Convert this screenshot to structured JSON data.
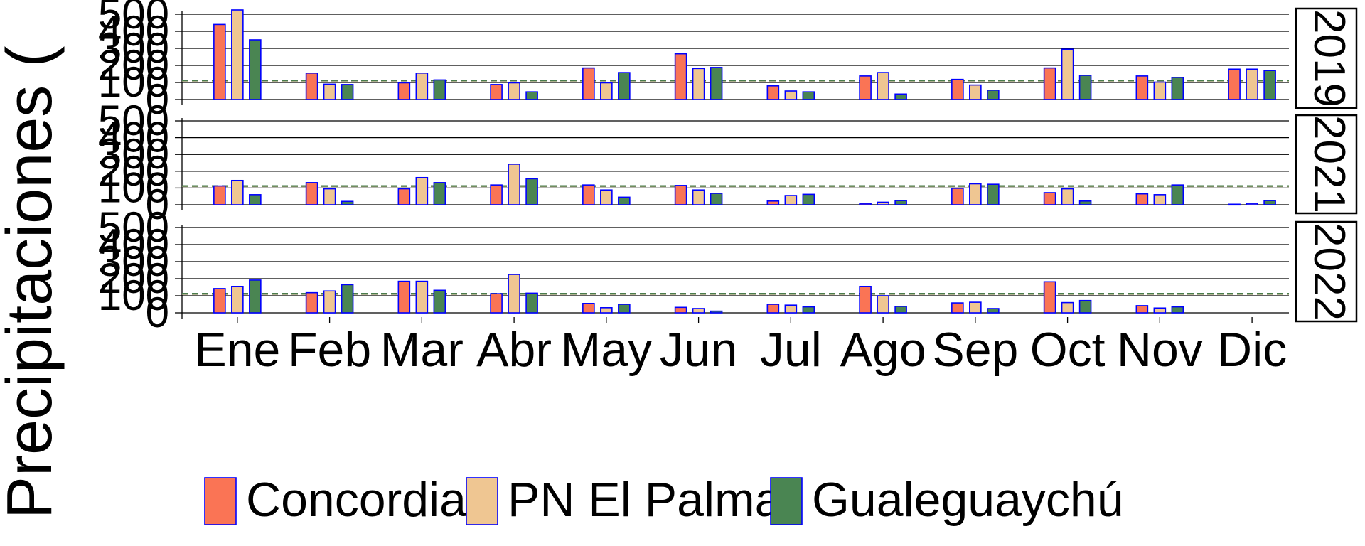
{
  "chart_data": {
    "type": "bar",
    "ylabel": "Precipitaciones (",
    "categories": [
      "Ene",
      "Feb",
      "Mar",
      "Abr",
      "May",
      "Jun",
      "Jul",
      "Ago",
      "Sep",
      "Oct",
      "Nov",
      "Dic"
    ],
    "y_ticks": [
      "0",
      "100",
      "200",
      "300",
      "400",
      "500"
    ],
    "ylim": [
      0,
      500
    ],
    "grid": true,
    "legend_position": "bottom",
    "series_meta": [
      {
        "name": "Concordia",
        "color": "#fa7455"
      },
      {
        "name": "PN El Palmar",
        "color": "#efc692"
      },
      {
        "name": "Gualeguaychú",
        "color": "#4a8552"
      }
    ],
    "bar_border_color": "#0000ff",
    "reference_lines": {
      "values": [
        110,
        112
      ],
      "colors": [
        "#b8a678",
        "#4a7d4e"
      ]
    },
    "panels": [
      {
        "label": "2019",
        "series": [
          {
            "name": "Concordia",
            "values": [
              440,
              155,
              98,
              88,
              185,
              268,
              80,
              138,
              118,
              185,
              138,
              178
            ]
          },
          {
            "name": "PN El Palmar",
            "values": [
              525,
              90,
              155,
              98,
              98,
              182,
              50,
              158,
              85,
              295,
              102,
              178
            ]
          },
          {
            "name": "Gualeguaychú",
            "values": [
              350,
              88,
              115,
              45,
              158,
              188,
              45,
              32,
              55,
              142,
              130,
              170
            ]
          }
        ]
      },
      {
        "label": "2021",
        "series": [
          {
            "name": "Concordia",
            "values": [
              112,
              132,
              95,
              118,
              118,
              115,
              22,
              8,
              98,
              72,
              65,
              3
            ]
          },
          {
            "name": "PN El Palmar",
            "values": [
              145,
              95,
              162,
              242,
              88,
              88,
              55,
              15,
              125,
              95,
              60,
              8
            ]
          },
          {
            "name": "Gualeguaychú",
            "values": [
              60,
              20,
              132,
              155,
              45,
              68,
              62,
              25,
              122,
              22,
              118,
              25
            ]
          }
        ]
      },
      {
        "label": "2022",
        "series": [
          {
            "name": "Concordia",
            "values": [
              142,
              118,
              185,
              112,
              55,
              32,
              50,
              155,
              58,
              182,
              42,
              0
            ]
          },
          {
            "name": "PN El Palmar",
            "values": [
              155,
              128,
              185,
              225,
              30,
              25,
              45,
              100,
              62,
              60,
              28,
              0
            ]
          },
          {
            "name": "Gualeguaychú",
            "values": [
              192,
              165,
              132,
              115,
              50,
              10,
              35,
              38,
              25,
              72,
              35,
              0
            ]
          }
        ]
      }
    ]
  }
}
